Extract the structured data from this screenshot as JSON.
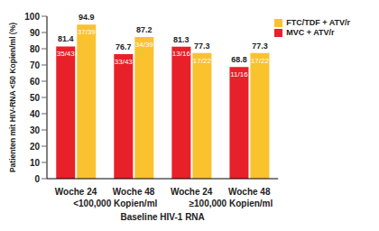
{
  "chart_data": {
    "type": "bar",
    "y_label": "Patienten mit HIV-RNA <50 Kopien/ml (%)",
    "x_label": "Baseline HIV-1 RNA",
    "categories": [
      "Woche 24",
      "Woche 48",
      "Woche 24",
      "Woche 48"
    ],
    "category_groups": [
      "<100,000 Kopien/ml",
      "<100,000 Kopien/ml",
      "≥100,000 Kopien/ml",
      "≥100,000 Kopien/ml"
    ],
    "series": [
      {
        "name": "MVC + ATV/r",
        "color": "#e8202a",
        "values": [
          81.4,
          76.7,
          81.3,
          68.8
        ],
        "counts": [
          "35/43",
          "33/43",
          "13/16",
          "11/16"
        ]
      },
      {
        "name": "FTC/TDF + ATV/r",
        "color": "#f9c22e",
        "values": [
          94.9,
          87.2,
          77.3,
          77.3
        ],
        "counts": [
          "37/39",
          "34/39",
          "17/22",
          "17/22"
        ]
      }
    ],
    "ylim": [
      0,
      100
    ],
    "yticks": [
      0,
      10,
      20,
      30,
      40,
      50,
      60,
      70,
      80,
      90,
      100
    ],
    "grid": false,
    "data_labels": true,
    "legend": "top-right"
  }
}
